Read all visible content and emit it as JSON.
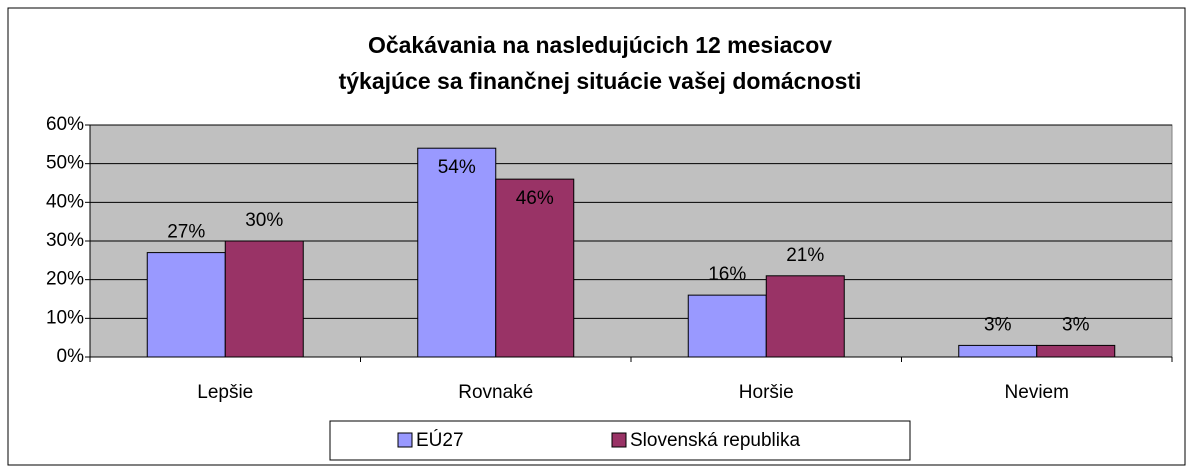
{
  "chart_data": {
    "type": "bar",
    "title": [
      "Očakávania na nasledujúcich 12 mesiacov",
      "týkajúce sa finančnej situácie vašej domácnosti"
    ],
    "categories": [
      "Lepšie",
      "Rovnaké",
      "Horšie",
      "Neviem"
    ],
    "series": [
      {
        "name": "EÚ27",
        "color": "#9999ff",
        "values": [
          27,
          54,
          16,
          3
        ],
        "value_labels": [
          "27%",
          "54%",
          "16%",
          "3%"
        ]
      },
      {
        "name": "Slovenská republika",
        "color": "#993366",
        "values": [
          30,
          46,
          21,
          3
        ],
        "value_labels": [
          "30%",
          "46%",
          "21%",
          "3%"
        ]
      }
    ],
    "ylim": [
      0,
      60
    ],
    "yticks": [
      {
        "value": 0,
        "label": "0%"
      },
      {
        "value": 10,
        "label": "10%"
      },
      {
        "value": 20,
        "label": "20%"
      },
      {
        "value": 30,
        "label": "30%"
      },
      {
        "value": 40,
        "label": "40%"
      },
      {
        "value": 50,
        "label": "50%"
      },
      {
        "value": 60,
        "label": "60%"
      }
    ],
    "grid": true,
    "legend": "bottom"
  }
}
